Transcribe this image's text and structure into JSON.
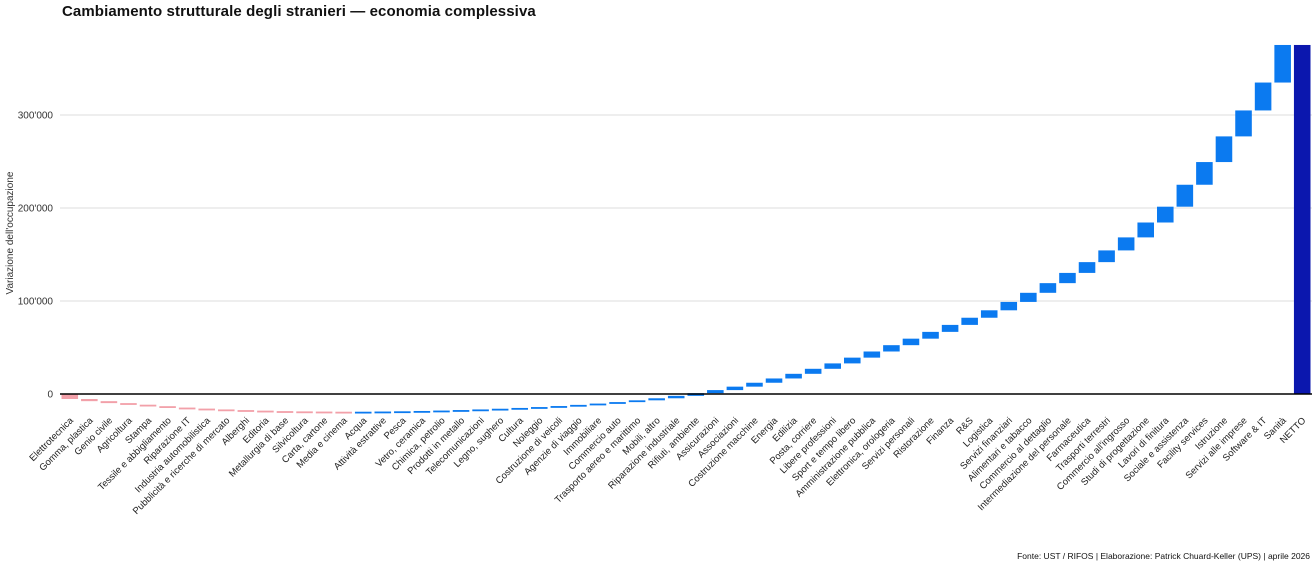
{
  "footer": {
    "text": "Fonte: UST / RIFOS | Elaborazione: Patrick Chuard-Keller (UPS) | aprile 2026"
  },
  "chart_data": {
    "type": "bar",
    "subtype": "waterfall",
    "title": "Cambiamento strutturale degli stranieri — economia complessiva",
    "xlabel": "",
    "ylabel": "Variazione dell'occupazione",
    "grid": true,
    "legend": false,
    "ylim": [
      -25000,
      383000
    ],
    "yticks": [
      {
        "label": "0",
        "value": 0
      },
      {
        "label": "100'000",
        "value": 100000
      },
      {
        "label": "200'000",
        "value": 200000
      },
      {
        "label": "300'000",
        "value": 300000
      }
    ],
    "categories": [
      "Elettrotecnica",
      "Gomma, plastica",
      "Genio civile",
      "Agricoltura",
      "Stampa",
      "Tessile e abbigliamento",
      "Riparazione IT",
      "Industria automobilistica",
      "Pubblicità e ricerche di mercato",
      "Alberghi",
      "Editoria",
      "Metallurgia di base",
      "Silvicoltura",
      "Carta, cartone",
      "Media e cinema",
      "Acqua",
      "Attività estrattive",
      "Pesca",
      "Vetro, ceramica",
      "Chimica, petrolio",
      "Prodotti in metallo",
      "Telecomunicazioni",
      "Legno, sughero",
      "Cultura",
      "Noleggio",
      "Costruzione di veicoli",
      "Agenzie di viaggio",
      "Immobiliare",
      "Commercio auto",
      "Trasporto aereo e marittimo",
      "Mobili, altro",
      "Riparazione industriale",
      "Rifiuti, ambiente",
      "Assicurazioni",
      "Associazioni",
      "Costruzione macchine",
      "Energia",
      "Edilizia",
      "Posta, corriere",
      "Libere professioni",
      "Sport e tempo libero",
      "Amministrazione pubblica",
      "Elettronica, orologeria",
      "Servizi personali",
      "Ristorazione",
      "Finanza",
      "R&S",
      "Logistica",
      "Servizi finanziari",
      "Alimentari e tabacco",
      "Commercio al dettaglio",
      "Intermediazione del personale",
      "Farmaceutica",
      "Trasporti terrestri",
      "Commercio all'ingrosso",
      "Studi di progettazione",
      "Lavori di finitura",
      "Sociale e assistenza",
      "Facility services",
      "Istruzione",
      "Servizi alle imprese",
      "Software & IT",
      "Sanità"
    ],
    "values": [
      -5400,
      -2300,
      -2100,
      -1700,
      -1600,
      -1500,
      -1100,
      -900,
      -700,
      -600,
      -500,
      -300,
      -200,
      -150,
      -100,
      100,
      200,
      250,
      350,
      450,
      550,
      650,
      750,
      850,
      950,
      1100,
      1250,
      1400,
      1600,
      1900,
      2200,
      2600,
      2900,
      3300,
      3700,
      4200,
      4600,
      5000,
      5400,
      5800,
      6200,
      6600,
      6800,
      7000,
      7300,
      7500,
      7700,
      8000,
      9000,
      9800,
      10400,
      11000,
      11600,
      12600,
      14000,
      16000,
      17000,
      23600,
      24400,
      27600,
      27900,
      30000,
      40400
    ],
    "net_category": "NETTO",
    "net_value": 375300,
    "colors": {
      "negative": "#F2A0A9",
      "positive": "#0B7AF0",
      "net": "#0B17AE",
      "grid": "#DCDCDC",
      "axis": "#000000",
      "text": "#333333",
      "tick_text": "#222222"
    }
  }
}
